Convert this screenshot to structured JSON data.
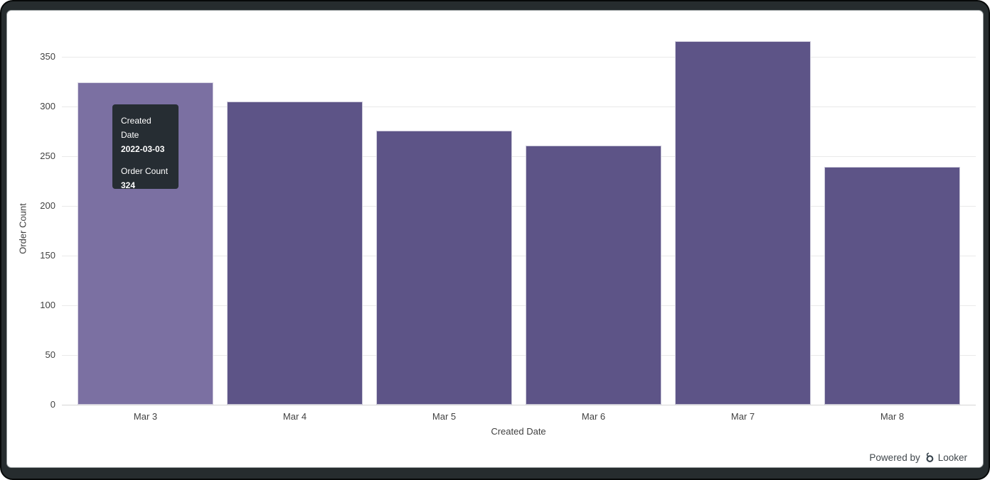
{
  "chart_data": {
    "type": "bar",
    "title": "",
    "categories": [
      "Mar 3",
      "Mar 4",
      "Mar 5",
      "Mar 6",
      "Mar 7",
      "Mar 8"
    ],
    "values": [
      324,
      305,
      276,
      261,
      366,
      239
    ],
    "xlabel": "Created Date",
    "ylabel": "Order Count",
    "ylim": [
      0,
      350
    ],
    "ytick_step": 50,
    "yticks": [
      0,
      50,
      100,
      150,
      200,
      250,
      300,
      350
    ],
    "grid": true,
    "legend": "none",
    "bar_color": "#5d5487",
    "bar_hover_color": "#7b70a2",
    "hovered_index": 0
  },
  "tooltip": {
    "field1_label": "Created Date",
    "field1_value": "2022-03-03",
    "field2_label": "Order Count",
    "field2_value": "324",
    "bg_color": "#262d33"
  },
  "footer": {
    "powered_by_label": "Powered by",
    "brand_name": "Looker"
  }
}
